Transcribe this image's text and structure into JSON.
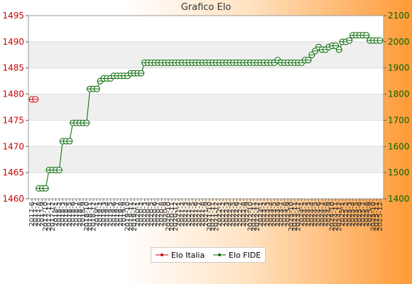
{
  "chart_data": {
    "type": "line",
    "title": "Grafico Elo",
    "left_axis": {
      "ylim": [
        1460,
        1495
      ],
      "ticks": [
        1460,
        1465,
        1470,
        1475,
        1480,
        1485,
        1490,
        1495
      ],
      "color": "#cc0000"
    },
    "right_axis": {
      "ylim": [
        1400,
        2100
      ],
      "ticks": [
        1400,
        1500,
        1600,
        1700,
        1800,
        1900,
        2000,
        2100
      ],
      "color": "#006600"
    },
    "x_tick_labels": [
      "2017-6",
      "2017-7",
      "2017-8",
      "2017-9",
      "2017-10",
      "2017-11",
      "2017-12",
      "2018-1",
      "2018-2",
      "2018-3",
      "2018-4",
      "2018-5",
      "2018-6",
      "2018-7",
      "2018-8",
      "2018-9",
      "2018-10",
      "2018-11",
      "2018-12",
      "2019-1",
      "2019-2",
      "2019-3",
      "2019-4",
      "2019-5",
      "2019-6",
      "2019-7",
      "2019-8",
      "2019-9",
      "2019-10",
      "2019-11",
      "2019-12",
      "2020-1",
      "2020-2",
      "2020-3",
      "2020-4",
      "2020-5",
      "2020-6",
      "2020-7",
      "2020-8",
      "2020-9",
      "2020-10",
      "2020-11",
      "2020-12",
      "2021-1",
      "2021-2",
      "2021-3",
      "2021-4",
      "2021-5",
      "2021-6",
      "2021-7",
      "2021-8",
      "2021-9",
      "2021-10",
      "2021-11",
      "2021-12",
      "2022-1",
      "2022-2",
      "2022-3",
      "2022-4",
      "2022-5",
      "2022-6",
      "2022-7",
      "2022-8",
      "2022-9",
      "2022-10",
      "2022-11",
      "2022-12",
      "2023-1",
      "2023-2",
      "2023-3",
      "2023-4",
      "2023-5",
      "2023-6",
      "2023-7",
      "2023-8",
      "2023-9",
      "2023-10",
      "2023-11",
      "2023-12",
      "2024-1",
      "2024-2",
      "2024-3",
      "2024-4",
      "2024-5",
      "2024-6",
      "2024-7",
      "2024-8",
      "2024-9",
      "2024-10",
      "2024-11",
      "2024-12",
      "2025-1",
      "2025-2",
      "2025-3",
      "2025-4",
      "2025-5",
      "2025-6",
      "2025-7",
      "2025-8",
      "2025-9",
      "2025-10",
      "2025-11",
      "2025-12"
    ],
    "series": [
      {
        "name": "Elo Italia",
        "axis": "left",
        "color": "#cc0000",
        "points": [
          [
            0,
            1479
          ],
          [
            1,
            1479
          ]
        ]
      },
      {
        "name": "Elo FIDE",
        "axis": "right",
        "color": "#006600",
        "points": [
          [
            2,
            1440
          ],
          [
            3,
            1440
          ],
          [
            4,
            1440
          ],
          [
            5,
            1510
          ],
          [
            6,
            1510
          ],
          [
            7,
            1510
          ],
          [
            8,
            1510
          ],
          [
            9,
            1620
          ],
          [
            10,
            1620
          ],
          [
            11,
            1620
          ],
          [
            12,
            1690
          ],
          [
            13,
            1690
          ],
          [
            14,
            1690
          ],
          [
            15,
            1690
          ],
          [
            16,
            1690
          ],
          [
            17,
            1820
          ],
          [
            18,
            1820
          ],
          [
            19,
            1820
          ],
          [
            20,
            1850
          ],
          [
            21,
            1860
          ],
          [
            22,
            1860
          ],
          [
            23,
            1860
          ],
          [
            24,
            1870
          ],
          [
            25,
            1870
          ],
          [
            26,
            1870
          ],
          [
            27,
            1870
          ],
          [
            28,
            1870
          ],
          [
            29,
            1880
          ],
          [
            30,
            1880
          ],
          [
            31,
            1880
          ],
          [
            32,
            1880
          ],
          [
            33,
            1920
          ],
          [
            34,
            1920
          ],
          [
            35,
            1920
          ],
          [
            36,
            1920
          ],
          [
            37,
            1920
          ],
          [
            38,
            1920
          ],
          [
            39,
            1920
          ],
          [
            40,
            1920
          ],
          [
            41,
            1920
          ],
          [
            42,
            1920
          ],
          [
            43,
            1920
          ],
          [
            44,
            1920
          ],
          [
            45,
            1920
          ],
          [
            46,
            1920
          ],
          [
            47,
            1920
          ],
          [
            48,
            1920
          ],
          [
            49,
            1920
          ],
          [
            50,
            1920
          ],
          [
            51,
            1920
          ],
          [
            52,
            1920
          ],
          [
            53,
            1920
          ],
          [
            54,
            1920
          ],
          [
            55,
            1920
          ],
          [
            56,
            1920
          ],
          [
            57,
            1920
          ],
          [
            58,
            1920
          ],
          [
            59,
            1920
          ],
          [
            60,
            1920
          ],
          [
            61,
            1920
          ],
          [
            62,
            1920
          ],
          [
            63,
            1920
          ],
          [
            64,
            1920
          ],
          [
            65,
            1920
          ],
          [
            66,
            1920
          ],
          [
            67,
            1920
          ],
          [
            68,
            1920
          ],
          [
            69,
            1920
          ],
          [
            70,
            1920
          ],
          [
            71,
            1920
          ],
          [
            72,
            1930
          ],
          [
            73,
            1920
          ],
          [
            74,
            1920
          ],
          [
            75,
            1920
          ],
          [
            76,
            1920
          ],
          [
            77,
            1920
          ],
          [
            78,
            1920
          ],
          [
            79,
            1920
          ],
          [
            80,
            1930
          ],
          [
            81,
            1930
          ],
          [
            82,
            1950
          ],
          [
            83,
            1965
          ],
          [
            84,
            1980
          ],
          [
            85,
            1970
          ],
          [
            86,
            1970
          ],
          [
            87,
            1980
          ],
          [
            88,
            1985
          ],
          [
            89,
            1985
          ],
          [
            90,
            1970
          ],
          [
            91,
            2000
          ],
          [
            92,
            2000
          ],
          [
            93,
            2005
          ],
          [
            94,
            2025
          ],
          [
            95,
            2025
          ],
          [
            96,
            2025
          ],
          [
            97,
            2025
          ],
          [
            98,
            2025
          ],
          [
            99,
            2005
          ],
          [
            100,
            2005
          ],
          [
            101,
            2005
          ],
          [
            102,
            2005
          ]
        ]
      }
    ]
  }
}
